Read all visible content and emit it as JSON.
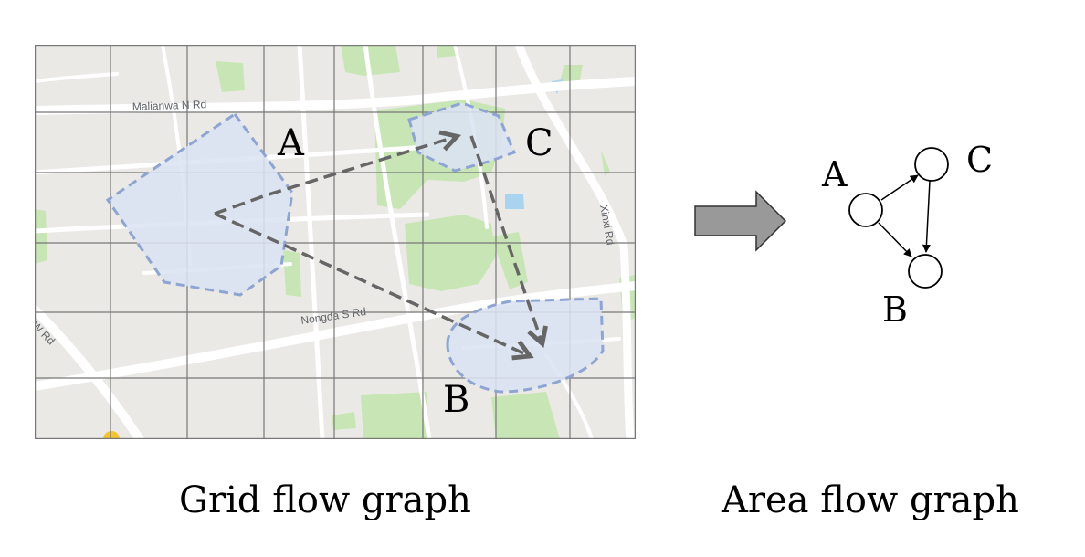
{
  "map": {
    "roads": [
      "Malianwa N Rd",
      "Nongda S Rd",
      "Xinxi Rd",
      "W Rd"
    ],
    "regions": [
      "A",
      "B",
      "C"
    ],
    "grid": {
      "cols": 8,
      "rows": 6
    }
  },
  "graph": {
    "nodes": [
      "A",
      "B",
      "C"
    ],
    "edges": [
      [
        "A",
        "C"
      ],
      [
        "A",
        "B"
      ],
      [
        "C",
        "B"
      ]
    ]
  },
  "captions": {
    "left": "Grid flow graph",
    "right": "Area flow graph"
  },
  "colors": {
    "region_fill": "#dbe2f3",
    "region_stroke": "#8ea4d2",
    "flow_arrow": "#666666",
    "park": "#c8e6b5",
    "water": "#aad3f0",
    "grid_line": "#777777",
    "transform_arrow": "#999999"
  }
}
